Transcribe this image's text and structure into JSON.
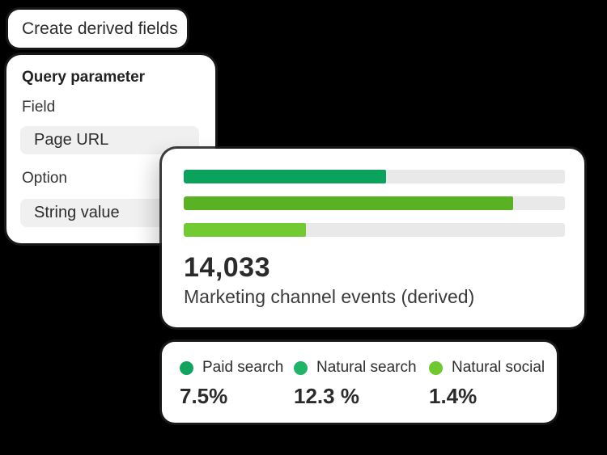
{
  "colors": {
    "background": "#000000",
    "card": "#ffffff",
    "track": "#e9e9e9",
    "input_bg": "#f0f0f0",
    "text_dark": "#2b2b2b"
  },
  "title_card": {
    "label": "Create derived fields"
  },
  "query_card": {
    "heading": "Query parameter",
    "field_label": "Field",
    "field_value": "Page URL",
    "option_label": "Option",
    "option_value": "String value"
  },
  "chart_data": {
    "type": "bar",
    "orientation": "horizontal",
    "title": "14,033",
    "subtitle": "Marketing channel events (derived)",
    "grid": false,
    "legend_position": "bottom",
    "series": [
      {
        "name": "Paid search",
        "value": 7.5,
        "percent_label": "7.5%",
        "bar_fill_pct": 53,
        "color": "#0ba35c",
        "dot_color": "#12a45e"
      },
      {
        "name": "Natural search",
        "value": 12.3,
        "percent_label": "12.3 %",
        "bar_fill_pct": 86.5,
        "color": "#59b224",
        "dot_color": "#1fb466"
      },
      {
        "name": "Natural social",
        "value": 1.4,
        "percent_label": "1.4%",
        "bar_fill_pct": 32,
        "color": "#71cb30",
        "dot_color": "#70c831"
      }
    ]
  }
}
